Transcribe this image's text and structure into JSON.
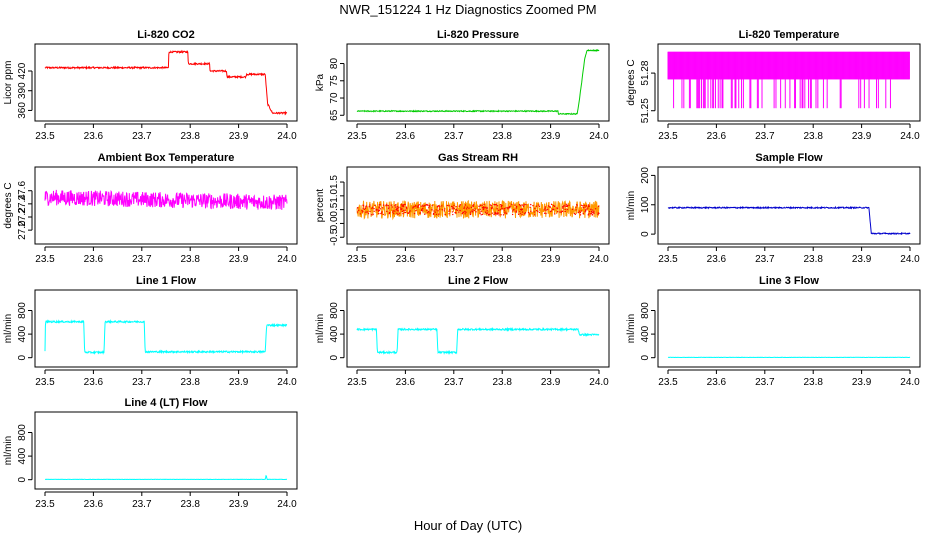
{
  "title": "NWR_151224  1 Hz Diagnostics Zoomed PM",
  "xlabel": "Hour of Day (UTC)",
  "chart_data": [
    {
      "type": "line",
      "title": "Li-820 CO2",
      "ylabel": "Licor ppm",
      "xlim": [
        23.5,
        24.0
      ],
      "ylim": [
        350,
        455
      ],
      "yticks": [
        360,
        390,
        420
      ],
      "xticks": [
        23.5,
        23.6,
        23.7,
        23.8,
        23.9,
        24.0
      ],
      "color": "#ff0000",
      "noise": 1.2,
      "series": [
        {
          "x": [
            23.5,
            23.755,
            23.756,
            23.795,
            23.796,
            23.84,
            23.841,
            23.875,
            23.876,
            23.915,
            23.916,
            23.955,
            23.96,
            23.97,
            24.0
          ],
          "y": [
            425,
            425,
            449,
            449,
            431,
            431,
            420,
            420,
            411,
            411,
            415,
            415,
            370,
            356,
            356
          ]
        }
      ]
    },
    {
      "type": "line",
      "title": "Li-820 Pressure",
      "ylabel": "kPa",
      "xlim": [
        23.5,
        24.0
      ],
      "ylim": [
        64.5,
        84.5
      ],
      "yticks": [
        65,
        70,
        75,
        80
      ],
      "xticks": [
        23.5,
        23.6,
        23.7,
        23.8,
        23.9,
        24.0
      ],
      "color": "#00cc00",
      "noise": 0.15,
      "series": [
        {
          "x": [
            23.5,
            23.915,
            23.916,
            23.955,
            23.96,
            23.97,
            23.975,
            24.0
          ],
          "y": [
            66.2,
            66.2,
            65.4,
            65.4,
            70,
            81,
            83.8,
            83.8
          ]
        }
      ]
    },
    {
      "type": "line",
      "title": "Li-820 Temperature",
      "ylabel": "degrees C",
      "xlim": [
        23.5,
        24.0
      ],
      "ylim": [
        51.245,
        51.3
      ],
      "yticks": [
        51.25,
        51.28
      ],
      "xticks": [
        23.5,
        23.6,
        23.7,
        23.8,
        23.9,
        24.0
      ],
      "color": "#ff00ff",
      "style": "flicker",
      "levels": [
        51.252,
        51.275,
        51.297
      ]
    },
    {
      "type": "line",
      "title": "Ambient Box Temperature",
      "ylabel": "degrees C",
      "xlim": [
        23.5,
        24.0
      ],
      "ylim": [
        26.85,
        27.9
      ],
      "yticks": [
        27.0,
        27.2,
        27.4,
        27.6
      ],
      "xticks": [
        23.5,
        23.6,
        23.7,
        23.8,
        23.9,
        24.0
      ],
      "color": "#ff00ff",
      "noise": 0.12,
      "series": [
        {
          "x": [
            23.5,
            24.0
          ],
          "y": [
            27.5,
            27.42
          ]
        }
      ]
    },
    {
      "type": "line",
      "title": "Gas Stream RH",
      "ylabel": "percent",
      "xlim": [
        23.5,
        24.0
      ],
      "ylim": [
        -0.6,
        1.9
      ],
      "yticks": [
        -0.5,
        0.0,
        0.5,
        1.0,
        1.5
      ],
      "xticks": [
        23.5,
        23.6,
        23.7,
        23.8,
        23.9,
        24.0
      ],
      "color": "#ff9900",
      "noise": 0.32,
      "dots": "#ff0000",
      "series": [
        {
          "x": [
            23.5,
            24.0
          ],
          "y": [
            0.5,
            0.5
          ]
        }
      ]
    },
    {
      "type": "line",
      "title": "Sample Flow",
      "ylabel": "ml/min",
      "xlim": [
        23.5,
        24.0
      ],
      "ylim": [
        -20,
        215
      ],
      "yticks": [
        0,
        100,
        200
      ],
      "xticks": [
        23.5,
        23.6,
        23.7,
        23.8,
        23.9,
        24.0
      ],
      "color": "#0000cc",
      "noise": 2,
      "series": [
        {
          "x": [
            23.5,
            23.915,
            23.92,
            24.0
          ],
          "y": [
            90,
            90,
            2,
            2
          ]
        }
      ]
    },
    {
      "type": "line",
      "title": "Line 1 Flow",
      "ylabel": "ml/min",
      "xlim": [
        23.5,
        24.0
      ],
      "ylim": [
        -90,
        1080
      ],
      "yticks": [
        0,
        400,
        800
      ],
      "xticks": [
        23.5,
        23.6,
        23.7,
        23.8,
        23.9,
        24.0
      ],
      "color": "#00ffff",
      "noise": 14,
      "series": [
        {
          "x": [
            23.5,
            23.501,
            23.504,
            23.58,
            23.582,
            23.622,
            23.624,
            23.705,
            23.707,
            23.955,
            23.958,
            24.0
          ],
          "y": [
            100,
            620,
            610,
            610,
            90,
            90,
            610,
            610,
            100,
            100,
            550,
            550
          ]
        }
      ]
    },
    {
      "type": "line",
      "title": "Line 2 Flow",
      "ylabel": "ml/min",
      "xlim": [
        23.5,
        24.0
      ],
      "ylim": [
        -90,
        1080
      ],
      "yticks": [
        0,
        400,
        800
      ],
      "xticks": [
        23.5,
        23.6,
        23.7,
        23.8,
        23.9,
        24.0
      ],
      "color": "#00ffff",
      "noise": 14,
      "series": [
        {
          "x": [
            23.5,
            23.54,
            23.542,
            23.583,
            23.585,
            23.665,
            23.667,
            23.706,
            23.708,
            23.957,
            23.96,
            24.0
          ],
          "y": [
            480,
            480,
            90,
            90,
            480,
            480,
            90,
            90,
            480,
            480,
            390,
            390
          ]
        }
      ]
    },
    {
      "type": "line",
      "title": "Line 3 Flow",
      "ylabel": "ml/min",
      "xlim": [
        23.5,
        24.0
      ],
      "ylim": [
        -90,
        1080
      ],
      "yticks": [
        0,
        400,
        800
      ],
      "xticks": [
        23.5,
        23.6,
        23.7,
        23.8,
        23.9,
        24.0
      ],
      "color": "#00ffff",
      "noise": 2,
      "series": [
        {
          "x": [
            23.5,
            24.0
          ],
          "y": [
            5,
            5
          ]
        }
      ]
    },
    {
      "type": "line",
      "title": "Line 4 (LT) Flow",
      "ylabel": "ml/min",
      "xlim": [
        23.5,
        24.0
      ],
      "ylim": [
        -90,
        1080
      ],
      "yticks": [
        0,
        400,
        800
      ],
      "xticks": [
        23.5,
        23.6,
        23.7,
        23.8,
        23.9,
        24.0
      ],
      "color": "#00ffff",
      "noise": 2,
      "series": [
        {
          "x": [
            23.5,
            23.955,
            23.957,
            23.959,
            24.0
          ],
          "y": [
            5,
            5,
            80,
            5,
            5
          ]
        }
      ]
    }
  ]
}
